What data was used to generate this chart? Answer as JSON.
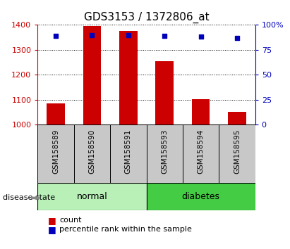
{
  "title": "GDS3153 / 1372806_at",
  "samples": [
    "GSM158589",
    "GSM158590",
    "GSM158591",
    "GSM158593",
    "GSM158594",
    "GSM158595"
  ],
  "count_values": [
    1085,
    1395,
    1375,
    1255,
    1103,
    1050
  ],
  "percentile_values": [
    89,
    90,
    90,
    89,
    88,
    87
  ],
  "ylim_left": [
    1000,
    1400
  ],
  "ylim_right": [
    0,
    100
  ],
  "yticks_left": [
    1000,
    1100,
    1200,
    1300,
    1400
  ],
  "yticks_right": [
    0,
    25,
    50,
    75,
    100
  ],
  "ytick_labels_right": [
    "0",
    "25",
    "50",
    "75",
    "100%"
  ],
  "groups": [
    {
      "label": "normal",
      "indices": [
        0,
        1,
        2
      ],
      "color": "#b8f0b8"
    },
    {
      "label": "diabetes",
      "indices": [
        3,
        4,
        5
      ],
      "color": "#44cc44"
    }
  ],
  "bar_color": "#cc0000",
  "marker_color": "#0000bb",
  "bar_width": 0.5,
  "bar_bottom": 1000,
  "background_color": "#ffffff",
  "tick_area_bg": "#c8c8c8",
  "left_axis_color": "#cc0000",
  "right_axis_color": "#0000bb",
  "title_fontsize": 11,
  "tick_label_fontsize": 7.5,
  "legend_fontsize": 8,
  "group_label_fontsize": 9,
  "disease_state_label": "disease state"
}
